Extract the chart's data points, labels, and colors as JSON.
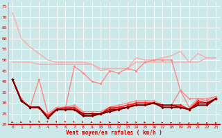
{
  "x": [
    0,
    1,
    2,
    3,
    4,
    5,
    6,
    7,
    8,
    9,
    10,
    11,
    12,
    13,
    14,
    15,
    16,
    17,
    18,
    19,
    20,
    21,
    22,
    23
  ],
  "series": [
    {
      "values": [
        72,
        60,
        56,
        53,
        50,
        49,
        49,
        49,
        49,
        48,
        45,
        46,
        46,
        46,
        51,
        50,
        50,
        51,
        52,
        54,
        49,
        53,
        51,
        51
      ],
      "color": "#ffaaaa",
      "lw": 1.0,
      "marker": null,
      "ms": 0
    },
    {
      "values": [
        49,
        49,
        49,
        48,
        48,
        48,
        48,
        48,
        48,
        48,
        46,
        46,
        46,
        46,
        49,
        49,
        49,
        49,
        49,
        49,
        49,
        49,
        51,
        51
      ],
      "color": "#ffaaaa",
      "lw": 1.0,
      "marker": null,
      "ms": 0
    },
    {
      "values": [
        41,
        32,
        28,
        41,
        25,
        28,
        28,
        47,
        44,
        40,
        39,
        45,
        44,
        46,
        45,
        49,
        50,
        50,
        50,
        36,
        32,
        32,
        32,
        33
      ],
      "color": "#ff8888",
      "lw": 1.0,
      "marker": "D",
      "ms": 2.0
    },
    {
      "values": [
        41,
        32,
        28,
        28,
        24,
        28,
        28,
        29,
        26,
        26,
        26,
        28,
        29,
        30,
        31,
        31,
        31,
        29,
        29,
        36,
        28,
        32,
        31,
        33
      ],
      "color": "#ff8888",
      "lw": 1.0,
      "marker": "D",
      "ms": 2.0
    },
    {
      "values": [
        41,
        31,
        28,
        28,
        24,
        27,
        28,
        28,
        25,
        25,
        25,
        28,
        28,
        29,
        30,
        30,
        30,
        29,
        29,
        29,
        27,
        31,
        30,
        32
      ],
      "color": "#ff2222",
      "lw": 1.2,
      "marker": "D",
      "ms": 2.0
    },
    {
      "values": [
        41,
        31,
        28,
        28,
        24,
        27,
        27,
        28,
        25,
        25,
        25,
        27,
        28,
        28,
        30,
        30,
        30,
        29,
        29,
        29,
        27,
        30,
        30,
        32
      ],
      "color": "#ff2222",
      "lw": 1.2,
      "marker": "D",
      "ms": 2.0
    },
    {
      "values": [
        41,
        31,
        28,
        28,
        23,
        27,
        27,
        27,
        25,
        25,
        25,
        27,
        27,
        28,
        29,
        29,
        30,
        29,
        29,
        28,
        27,
        30,
        30,
        32
      ],
      "color": "#990000",
      "lw": 1.2,
      "marker": "D",
      "ms": 2.0
    },
    {
      "values": [
        41,
        31,
        28,
        28,
        23,
        27,
        27,
        27,
        24,
        24,
        25,
        26,
        27,
        28,
        29,
        29,
        30,
        28,
        28,
        28,
        27,
        29,
        29,
        32
      ],
      "color": "#770000",
      "lw": 1.5,
      "marker": "D",
      "ms": 2.0
    }
  ],
  "xlabel": "Vent moyen/en rafales ( km/h )",
  "ylim": [
    20,
    77
  ],
  "yticks": [
    20,
    25,
    30,
    35,
    40,
    45,
    50,
    55,
    60,
    65,
    70,
    75
  ],
  "xticks": [
    0,
    1,
    2,
    3,
    4,
    5,
    6,
    7,
    8,
    9,
    10,
    11,
    12,
    13,
    14,
    15,
    16,
    17,
    18,
    19,
    20,
    21,
    22,
    23
  ],
  "bg_color": "#cce8e8",
  "grid_color": "#ffffff",
  "tick_color": "#cc0000",
  "label_color": "#cc0000"
}
